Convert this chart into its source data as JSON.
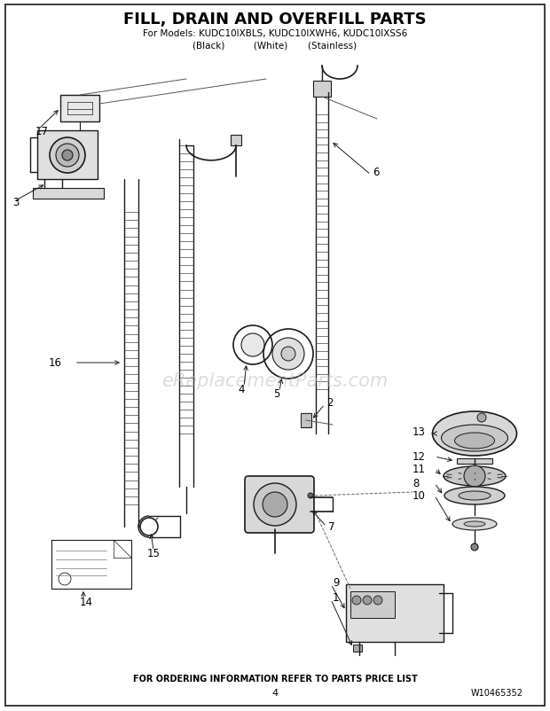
{
  "title": "FILL, DRAIN AND OVERFILL PARTS",
  "subtitle1": "For Models: KUDC10IXBLS, KUDC10IXWH6, KUDC10IXSS6",
  "subtitle2": "(Black)          (White)       (Stainless)",
  "footer1": "FOR ORDERING INFORMATION REFER TO PARTS PRICE LIST",
  "footer2": "4",
  "footer3": "W10465352",
  "watermark": "eReplacementParts.com",
  "bg_color": "#ffffff",
  "lc": "#1a1a1a",
  "fig_w": 6.2,
  "fig_h": 8.03,
  "dpi": 100
}
